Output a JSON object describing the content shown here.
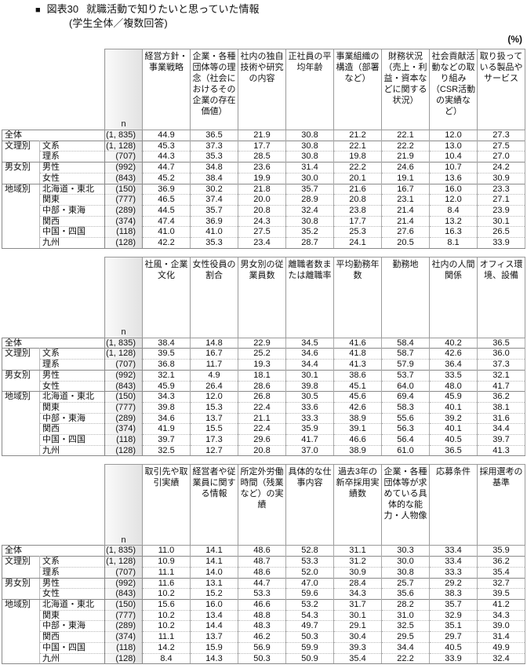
{
  "title": {
    "marker": "■",
    "figure": "図表30",
    "text": "就職活動で知りたいと思っていた情報",
    "subtitle": "(学生全体／複数回答)"
  },
  "unit": "(%)",
  "n_header": "n",
  "row_labels": [
    {
      "group": "全体",
      "label": ""
    },
    {
      "group": "文理別",
      "label": "文系"
    },
    {
      "group": "",
      "label": "理系"
    },
    {
      "group": "男女別",
      "label": "男性"
    },
    {
      "group": "",
      "label": "女性"
    },
    {
      "group": "地域別",
      "label": "北海道・東北"
    },
    {
      "group": "",
      "label": "関東"
    },
    {
      "group": "",
      "label": "中部・東海"
    },
    {
      "group": "",
      "label": "関西"
    },
    {
      "group": "",
      "label": "中国・四国"
    },
    {
      "group": "",
      "label": "九州"
    }
  ],
  "n_values": [
    "(1, 835)",
    "(1, 128)",
    "(707)",
    "(992)",
    "(843)",
    "(150)",
    "(777)",
    "(289)",
    "(374)",
    "(118)",
    "(128)"
  ],
  "tables": [
    {
      "headers": [
        "経営方針・\n事業戦略",
        "企業・各種\n団体等の理\n念（社会に\nおけるその\n企業の存在\n価値）",
        "社内の独自\n技術や研究\nの内容",
        "正社員の平\n均年齢",
        "事業組織の\n構造（部署\nなど）",
        "財務状況\n（売上・利\n益・資本な\nどに関する\n状況）",
        "社会貢献活\n動などの取\nり組み\n（CSR活動\nの実績な\nど）",
        "取り扱って\nいる製品や\nサービス"
      ],
      "rows": [
        [
          "44.9",
          "36.5",
          "21.9",
          "30.8",
          "21.2",
          "22.1",
          "12.0",
          "27.3"
        ],
        [
          "45.3",
          "37.3",
          "17.7",
          "30.8",
          "22.1",
          "22.2",
          "13.0",
          "27.5"
        ],
        [
          "44.3",
          "35.3",
          "28.5",
          "30.8",
          "19.8",
          "21.9",
          "10.4",
          "27.0"
        ],
        [
          "44.7",
          "34.8",
          "23.6",
          "31.4",
          "22.2",
          "24.6",
          "10.7",
          "24.2"
        ],
        [
          "45.2",
          "38.4",
          "19.9",
          "30.0",
          "20.1",
          "19.1",
          "13.6",
          "30.9"
        ],
        [
          "36.9",
          "30.2",
          "21.8",
          "35.7",
          "21.6",
          "16.7",
          "16.0",
          "23.3"
        ],
        [
          "46.5",
          "37.4",
          "20.0",
          "28.9",
          "20.8",
          "23.1",
          "12.0",
          "27.1"
        ],
        [
          "44.5",
          "35.7",
          "20.8",
          "32.4",
          "23.8",
          "21.4",
          "8.4",
          "23.9"
        ],
        [
          "47.4",
          "36.9",
          "24.3",
          "30.8",
          "17.7",
          "21.4",
          "13.2",
          "30.1"
        ],
        [
          "41.0",
          "41.0",
          "27.5",
          "35.2",
          "25.3",
          "27.6",
          "16.3",
          "26.5"
        ],
        [
          "42.2",
          "35.3",
          "23.4",
          "28.7",
          "24.1",
          "20.5",
          "8.1",
          "33.9"
        ]
      ]
    },
    {
      "headers": [
        "社風・企業\n文化",
        "女性役員の\n割合",
        "男女別の従\n業員数",
        "離職者数ま\nたは離職率",
        "平均勤務年\n数",
        "勤務地",
        "社内の人間\n関係",
        "オフィス環\n境、設備"
      ],
      "rows": [
        [
          "38.4",
          "14.8",
          "22.9",
          "34.5",
          "41.6",
          "58.4",
          "40.2",
          "36.5"
        ],
        [
          "39.5",
          "16.7",
          "25.2",
          "34.6",
          "41.8",
          "58.7",
          "42.6",
          "36.0"
        ],
        [
          "36.8",
          "11.7",
          "19.3",
          "34.4",
          "41.3",
          "57.9",
          "36.4",
          "37.3"
        ],
        [
          "32.1",
          "4.9",
          "18.1",
          "30.1",
          "38.6",
          "53.7",
          "33.5",
          "32.1"
        ],
        [
          "45.9",
          "26.4",
          "28.6",
          "39.8",
          "45.1",
          "64.0",
          "48.0",
          "41.7"
        ],
        [
          "34.3",
          "12.0",
          "26.8",
          "30.5",
          "45.6",
          "69.4",
          "45.9",
          "36.2"
        ],
        [
          "39.8",
          "15.3",
          "22.4",
          "33.6",
          "42.6",
          "58.3",
          "40.1",
          "38.1"
        ],
        [
          "34.6",
          "13.7",
          "21.1",
          "33.3",
          "38.9",
          "55.6",
          "39.2",
          "31.6"
        ],
        [
          "41.9",
          "15.5",
          "22.4",
          "35.9",
          "39.1",
          "56.3",
          "40.1",
          "34.4"
        ],
        [
          "39.7",
          "17.3",
          "29.6",
          "41.7",
          "46.6",
          "56.4",
          "40.5",
          "39.7"
        ],
        [
          "32.5",
          "12.7",
          "20.8",
          "37.0",
          "38.9",
          "61.0",
          "36.5",
          "41.3"
        ]
      ]
    },
    {
      "headers": [
        "取引先や取\n引実績",
        "経営者や従\n業員に関す\nる情報",
        "所定外労働\n時間（残業\nなど）の実\n績",
        "具体的な仕\n事内容",
        "過去3年の\n新卒採用実\n績数",
        "企業・各種\n団体等が求\nめている具\n体的な能\n力・人物像",
        "応募条件",
        "採用選考の\n基準"
      ],
      "rows": [
        [
          "11.0",
          "14.1",
          "48.6",
          "52.8",
          "31.1",
          "30.3",
          "33.4",
          "35.9"
        ],
        [
          "10.9",
          "14.1",
          "48.7",
          "53.3",
          "31.2",
          "30.0",
          "33.4",
          "36.2"
        ],
        [
          "11.1",
          "14.0",
          "48.6",
          "52.0",
          "30.9",
          "30.8",
          "33.3",
          "35.4"
        ],
        [
          "11.6",
          "13.1",
          "44.7",
          "47.0",
          "28.4",
          "25.7",
          "29.2",
          "32.7"
        ],
        [
          "10.2",
          "15.2",
          "53.3",
          "59.6",
          "34.3",
          "35.6",
          "38.3",
          "39.5"
        ],
        [
          "15.6",
          "16.0",
          "46.6",
          "53.2",
          "31.7",
          "28.2",
          "35.7",
          "41.2"
        ],
        [
          "10.2",
          "13.4",
          "48.8",
          "54.3",
          "30.1",
          "31.0",
          "32.9",
          "34.3"
        ],
        [
          "10.2",
          "14.4",
          "48.3",
          "49.7",
          "29.1",
          "32.5",
          "35.1",
          "39.0"
        ],
        [
          "11.1",
          "13.7",
          "46.2",
          "50.3",
          "30.4",
          "29.5",
          "29.7",
          "31.4"
        ],
        [
          "14.2",
          "15.9",
          "56.9",
          "59.9",
          "39.3",
          "34.4",
          "40.5",
          "49.9"
        ],
        [
          "8.4",
          "14.3",
          "50.3",
          "50.9",
          "35.4",
          "22.2",
          "33.9",
          "32.4"
        ]
      ]
    }
  ]
}
